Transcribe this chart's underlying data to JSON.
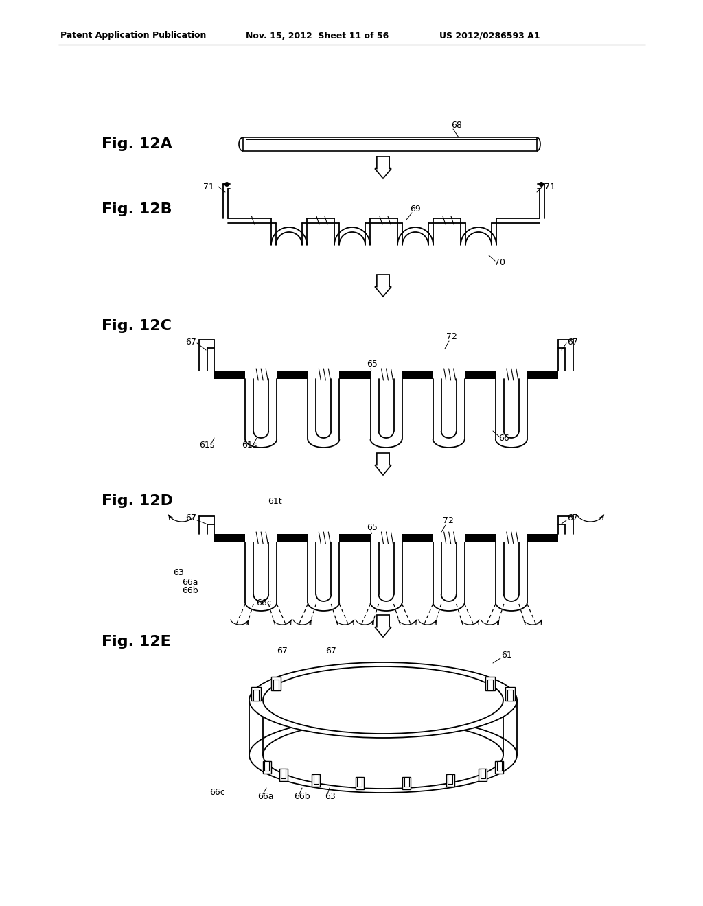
{
  "bg_color": "#ffffff",
  "line_color": "#000000",
  "header_left": "Patent Application Publication",
  "header_mid": "Nov. 15, 2012  Sheet 11 of 56",
  "header_right": "US 2012/0286593 A1",
  "fig_labels": [
    "Fig. 12A",
    "Fig. 12B",
    "Fig. 12C",
    "Fig. 12D",
    "Fig. 12E"
  ],
  "label_fontsize": 16,
  "ref_fontsize": 9,
  "header_fontsize": 9,
  "lw_thin": 1.2,
  "lw_thick": 2.5
}
